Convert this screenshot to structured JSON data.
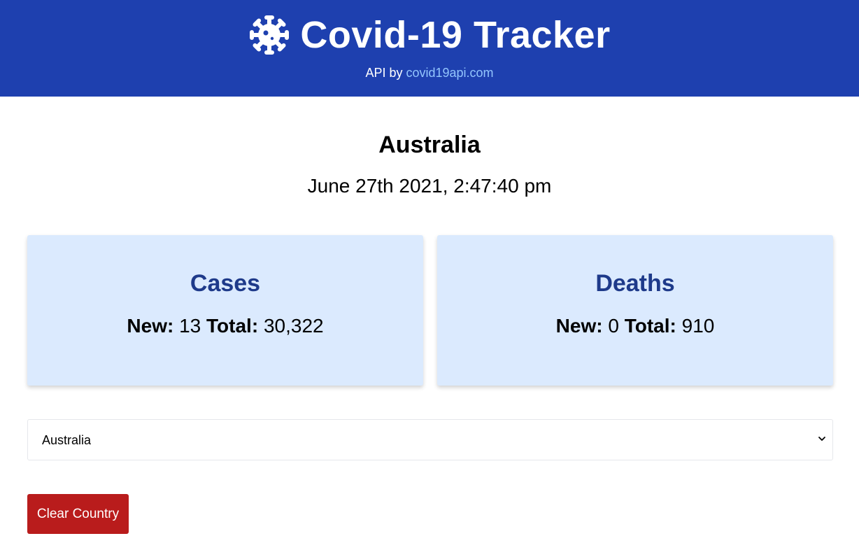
{
  "header": {
    "title": "Covid-19 Tracker",
    "logo_icon": "virus-icon",
    "api_prefix": "API by",
    "api_link": "covid19api.com",
    "background_color": "#1e40af",
    "link_color": "#93c5fd"
  },
  "country": {
    "name": "Australia",
    "datetime": "June 27th 2021, 2:47:40 pm"
  },
  "cards": {
    "cases": {
      "title": "Cases",
      "new_label": "New:",
      "new_value": "13",
      "total_label": "Total:",
      "total_value": "30,322"
    },
    "deaths": {
      "title": "Deaths",
      "new_label": "New:",
      "new_value": "0",
      "total_label": "Total:",
      "total_value": "910"
    },
    "background_color": "#dbeafe",
    "title_color": "#1e3a8a"
  },
  "country_select": {
    "selected_value": "Australia",
    "arrow_icon": "chevron-down-icon"
  },
  "clear_button": {
    "label": "Clear Country",
    "background_color": "#b91c1c"
  }
}
